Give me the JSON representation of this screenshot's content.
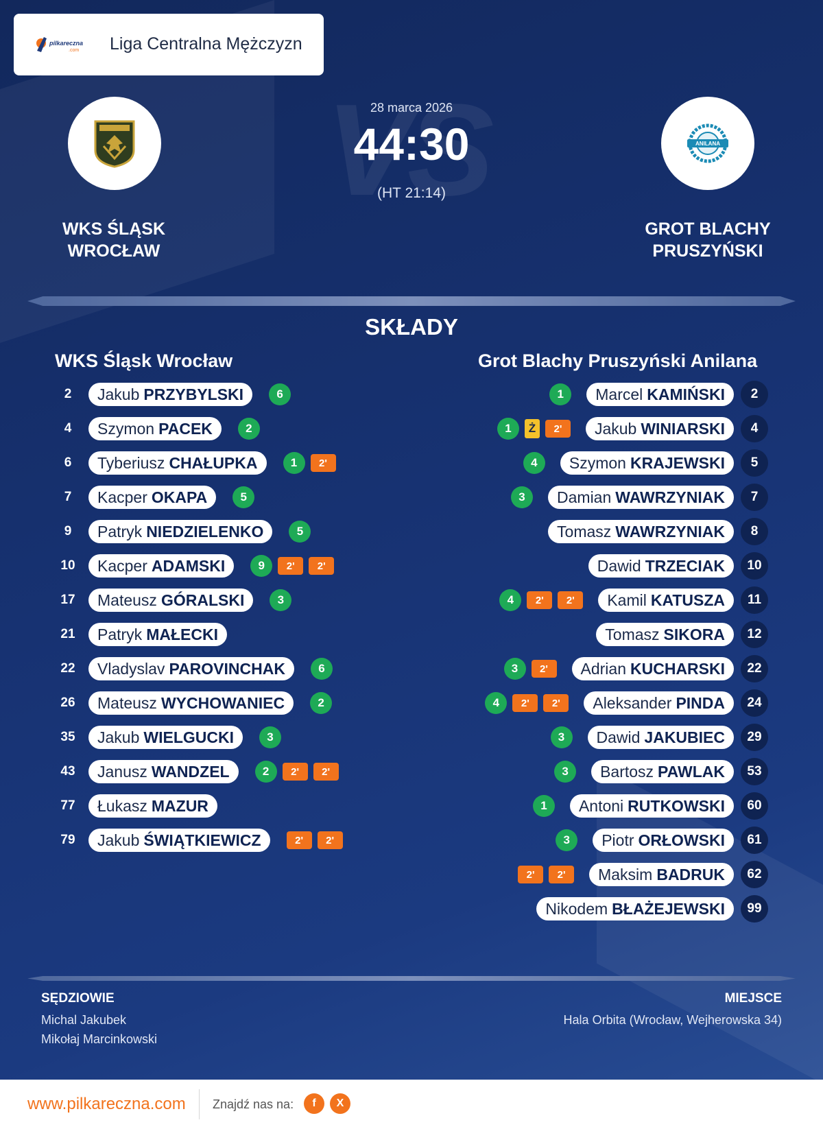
{
  "header": {
    "league": "Liga Centralna Mężczyzn",
    "logo_text": "pilkareczna",
    "logo_sub": ".com"
  },
  "match": {
    "date": "28 marca 2026",
    "score": "44:30",
    "halftime": "(HT 21:14)",
    "vs_watermark": "VS",
    "home_name": "WKS ŚLĄSK WROCŁAW",
    "away_name": "GROT BLACHY PRUSZYŃSKI",
    "home_crest_icon": "slask-wroclaw-crest",
    "away_crest_icon": "anilana-crest"
  },
  "section_title": "SKŁADY",
  "home": {
    "team": "WKS Śląsk Wrocław",
    "players": [
      {
        "num": "2",
        "first": "Jakub",
        "last": "PRZYBYLSKI",
        "goals": "6",
        "yellow": "",
        "pen": []
      },
      {
        "num": "4",
        "first": "Szymon",
        "last": "PACEK",
        "goals": "2",
        "yellow": "",
        "pen": []
      },
      {
        "num": "6",
        "first": "Tyberiusz",
        "last": "CHAŁUPKA",
        "goals": "1",
        "yellow": "",
        "pen": [
          "2'"
        ]
      },
      {
        "num": "7",
        "first": "Kacper",
        "last": "OKAPA",
        "goals": "5",
        "yellow": "",
        "pen": []
      },
      {
        "num": "9",
        "first": "Patryk",
        "last": "NIEDZIELENKO",
        "goals": "5",
        "yellow": "",
        "pen": []
      },
      {
        "num": "10",
        "first": "Kacper",
        "last": "ADAMSKI",
        "goals": "9",
        "yellow": "",
        "pen": [
          "2'",
          "2'"
        ]
      },
      {
        "num": "17",
        "first": "Mateusz",
        "last": "GÓRALSKI",
        "goals": "3",
        "yellow": "",
        "pen": []
      },
      {
        "num": "21",
        "first": "Patryk",
        "last": "MAŁECKI",
        "goals": "",
        "yellow": "",
        "pen": []
      },
      {
        "num": "22",
        "first": "Vladyslav",
        "last": "PAROVINCHAK",
        "goals": "6",
        "yellow": "",
        "pen": []
      },
      {
        "num": "26",
        "first": "Mateusz",
        "last": "WYCHOWANIEC",
        "goals": "2",
        "yellow": "",
        "pen": []
      },
      {
        "num": "35",
        "first": "Jakub",
        "last": "WIELGUCKI",
        "goals": "3",
        "yellow": "",
        "pen": []
      },
      {
        "num": "43",
        "first": "Janusz",
        "last": "WANDZEL",
        "goals": "2",
        "yellow": "",
        "pen": [
          "2'",
          "2'"
        ]
      },
      {
        "num": "77",
        "first": "Łukasz",
        "last": "MAZUR",
        "goals": "",
        "yellow": "",
        "pen": []
      },
      {
        "num": "79",
        "first": "Jakub",
        "last": "ŚWIĄTKIEWICZ",
        "goals": "",
        "yellow": "",
        "pen": [
          "2'",
          "2'"
        ]
      }
    ]
  },
  "away": {
    "team": "Grot Blachy Pruszyński Anilana",
    "players": [
      {
        "num": "2",
        "first": "Marcel",
        "last": "KAMIŃSKI",
        "goals": "1",
        "yellow": "",
        "pen": []
      },
      {
        "num": "4",
        "first": "Jakub",
        "last": "WINIARSKI",
        "goals": "1",
        "yellow": "Ż",
        "pen": [
          "2'"
        ]
      },
      {
        "num": "5",
        "first": "Szymon",
        "last": "KRAJEWSKI",
        "goals": "4",
        "yellow": "",
        "pen": []
      },
      {
        "num": "7",
        "first": "Damian",
        "last": "WAWRZYNIAK",
        "goals": "3",
        "yellow": "",
        "pen": []
      },
      {
        "num": "8",
        "first": "Tomasz",
        "last": "WAWRZYNIAK",
        "goals": "",
        "yellow": "",
        "pen": []
      },
      {
        "num": "10",
        "first": "Dawid",
        "last": "TRZECIAK",
        "goals": "",
        "yellow": "",
        "pen": []
      },
      {
        "num": "11",
        "first": "Kamil",
        "last": "KATUSZA",
        "goals": "4",
        "yellow": "",
        "pen": [
          "2'",
          "2'"
        ]
      },
      {
        "num": "12",
        "first": "Tomasz",
        "last": "SIKORA",
        "goals": "",
        "yellow": "",
        "pen": []
      },
      {
        "num": "22",
        "first": "Adrian",
        "last": "KUCHARSKI",
        "goals": "3",
        "yellow": "",
        "pen": [
          "2'"
        ]
      },
      {
        "num": "24",
        "first": "Aleksander",
        "last": "PINDA",
        "goals": "4",
        "yellow": "",
        "pen": [
          "2'",
          "2'"
        ]
      },
      {
        "num": "29",
        "first": "Dawid",
        "last": "JAKUBIEC",
        "goals": "3",
        "yellow": "",
        "pen": []
      },
      {
        "num": "53",
        "first": "Bartosz",
        "last": "PAWLAK",
        "goals": "3",
        "yellow": "",
        "pen": []
      },
      {
        "num": "60",
        "first": "Antoni",
        "last": "RUTKOWSKI",
        "goals": "1",
        "yellow": "",
        "pen": []
      },
      {
        "num": "61",
        "first": "Piotr",
        "last": "ORŁOWSKI",
        "goals": "3",
        "yellow": "",
        "pen": []
      },
      {
        "num": "62",
        "first": "Maksim",
        "last": "BADRUK",
        "goals": "",
        "yellow": "",
        "pen": [
          "2'",
          "2'"
        ]
      },
      {
        "num": "99",
        "first": "Nikodem",
        "last": "BŁAŻEJEWSKI",
        "goals": "",
        "yellow": "",
        "pen": []
      }
    ]
  },
  "officials": {
    "label": "SĘDZIOWIE",
    "names": [
      "Michal Jakubek",
      "Mikołaj Marcinkowski"
    ]
  },
  "venue": {
    "label": "MIEJSCE",
    "text": "Hala Orbita (Wrocław, Wejherowska 34)"
  },
  "footer": {
    "site": "www.pilkareczna.com",
    "find": "Znajdź nas na:",
    "social": [
      {
        "icon": "facebook-icon",
        "glyph": "f"
      },
      {
        "icon": "x-icon",
        "glyph": "X"
      }
    ]
  },
  "colors": {
    "background": "#173272",
    "goal": "#1eaa56",
    "penalty": "#f2731d",
    "yellow": "#f4c22b",
    "number": "#0f2352"
  }
}
